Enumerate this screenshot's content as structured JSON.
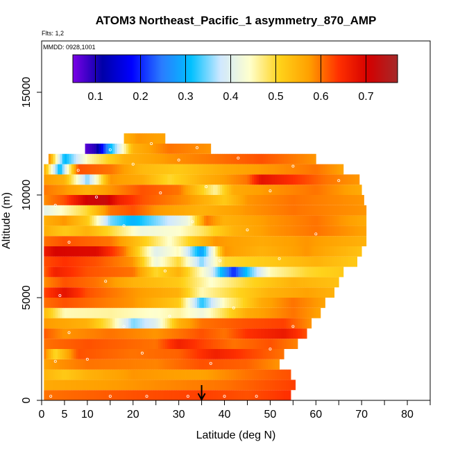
{
  "chart_data": {
    "type": "heatmap",
    "title": "ATOM3 Northeast_Pacific_1 asymmetry_870_AMP",
    "subtitle_flights": "Flts: 1,2",
    "subtitle_dates": "MMDD: 0928,1001",
    "xlabel": "Latitude (deg N)",
    "ylabel": "Altitude (m)",
    "xlim": [
      0,
      85
    ],
    "ylim": [
      0,
      17500
    ],
    "x_ticks": [
      0,
      5,
      10,
      20,
      30,
      40,
      50,
      60,
      70,
      80
    ],
    "x_minor_ticks": [
      15,
      25,
      35,
      45,
      55,
      65,
      75,
      85
    ],
    "y_ticks": [
      0,
      5000,
      10000,
      15000
    ],
    "colorbar": {
      "range": [
        0.05,
        0.77
      ],
      "ticks": [
        0.1,
        0.2,
        0.3,
        0.4,
        0.5,
        0.6,
        0.7
      ],
      "colors": [
        "#7a00e6",
        "#0000a8",
        "#0000ff",
        "#2a7bff",
        "#00c0ff",
        "#cfe8ff",
        "#ffffcc",
        "#ffd21a",
        "#ffa000",
        "#ff3000",
        "#d40000",
        "#a52a2a"
      ]
    },
    "marker_latitude": 35,
    "layers": [
      {
        "alt": 250,
        "x0": 0.5,
        "x1": 54.5,
        "anchors": [
          [
            0,
            0.6
          ],
          [
            20,
            0.62
          ],
          [
            35,
            0.63
          ],
          [
            45,
            0.62
          ],
          [
            54,
            0.64
          ]
        ]
      },
      {
        "alt": 750,
        "x0": 0.5,
        "x1": 55.5,
        "anchors": [
          [
            0,
            0.56
          ],
          [
            20,
            0.58
          ],
          [
            40,
            0.6
          ],
          [
            55,
            0.63
          ]
        ]
      },
      {
        "alt": 1250,
        "x0": 0.5,
        "x1": 54.5,
        "anchors": [
          [
            0,
            0.55
          ],
          [
            5,
            0.52
          ],
          [
            10,
            0.55
          ],
          [
            20,
            0.58
          ],
          [
            35,
            0.57
          ],
          [
            45,
            0.6
          ],
          [
            54,
            0.62
          ]
        ]
      },
      {
        "alt": 1750,
        "x0": 0.5,
        "x1": 52.0,
        "anchors": [
          [
            0,
            0.57
          ],
          [
            10,
            0.6
          ],
          [
            25,
            0.59
          ],
          [
            35,
            0.62
          ],
          [
            45,
            0.61
          ],
          [
            52,
            0.58
          ]
        ]
      },
      {
        "alt": 2250,
        "x0": 0.5,
        "x1": 53.0,
        "anchors": [
          [
            0,
            0.62
          ],
          [
            3,
            0.5
          ],
          [
            8,
            0.62
          ],
          [
            20,
            0.6
          ],
          [
            30,
            0.61
          ],
          [
            38,
            0.66
          ],
          [
            45,
            0.63
          ],
          [
            53,
            0.6
          ]
        ]
      },
      {
        "alt": 2750,
        "x0": 0.5,
        "x1": 56.0,
        "anchors": [
          [
            0,
            0.6
          ],
          [
            10,
            0.62
          ],
          [
            25,
            0.6
          ],
          [
            30,
            0.66
          ],
          [
            35,
            0.63
          ],
          [
            42,
            0.6
          ],
          [
            50,
            0.62
          ],
          [
            56,
            0.59
          ]
        ]
      },
      {
        "alt": 3250,
        "x0": 0.5,
        "x1": 58.0,
        "anchors": [
          [
            0,
            0.62
          ],
          [
            5,
            0.58
          ],
          [
            15,
            0.6
          ],
          [
            25,
            0.58
          ],
          [
            35,
            0.62
          ],
          [
            40,
            0.6
          ],
          [
            45,
            0.64
          ],
          [
            53,
            0.67
          ],
          [
            58,
            0.62
          ]
        ]
      },
      {
        "alt": 3750,
        "x0": 0.5,
        "x1": 59.0,
        "anchors": [
          [
            0,
            0.58
          ],
          [
            10,
            0.55
          ],
          [
            15,
            0.48
          ],
          [
            20,
            0.35
          ],
          [
            25,
            0.4
          ],
          [
            30,
            0.55
          ],
          [
            35,
            0.6
          ],
          [
            45,
            0.62
          ],
          [
            53,
            0.63
          ],
          [
            59,
            0.58
          ]
        ]
      },
      {
        "alt": 4250,
        "x0": 0.5,
        "x1": 61.0,
        "anchors": [
          [
            0,
            0.55
          ],
          [
            5,
            0.45
          ],
          [
            15,
            0.46
          ],
          [
            25,
            0.44
          ],
          [
            30,
            0.46
          ],
          [
            35,
            0.42
          ],
          [
            45,
            0.56
          ],
          [
            55,
            0.6
          ],
          [
            61,
            0.57
          ]
        ]
      },
      {
        "alt": 4750,
        "x0": 0.5,
        "x1": 62.0,
        "anchors": [
          [
            0,
            0.6
          ],
          [
            5,
            0.62
          ],
          [
            12,
            0.6
          ],
          [
            20,
            0.58
          ],
          [
            30,
            0.52
          ],
          [
            35,
            0.32
          ],
          [
            40,
            0.45
          ],
          [
            48,
            0.56
          ],
          [
            55,
            0.6
          ],
          [
            62,
            0.57
          ]
        ]
      },
      {
        "alt": 5250,
        "x0": 0.5,
        "x1": 64.0,
        "anchors": [
          [
            0,
            0.62
          ],
          [
            5,
            0.68
          ],
          [
            10,
            0.62
          ],
          [
            20,
            0.58
          ],
          [
            30,
            0.55
          ],
          [
            35,
            0.45
          ],
          [
            42,
            0.5
          ],
          [
            50,
            0.55
          ],
          [
            58,
            0.57
          ],
          [
            64,
            0.55
          ]
        ]
      },
      {
        "alt": 5750,
        "x0": 0.5,
        "x1": 65.0,
        "anchors": [
          [
            0,
            0.58
          ],
          [
            5,
            0.62
          ],
          [
            12,
            0.6
          ],
          [
            20,
            0.55
          ],
          [
            30,
            0.52
          ],
          [
            37,
            0.44
          ],
          [
            45,
            0.5
          ],
          [
            55,
            0.55
          ],
          [
            65,
            0.53
          ]
        ]
      },
      {
        "alt": 6250,
        "x0": 0.5,
        "x1": 66.0,
        "anchors": [
          [
            0,
            0.6
          ],
          [
            3,
            0.66
          ],
          [
            10,
            0.62
          ],
          [
            20,
            0.6
          ],
          [
            25,
            0.5
          ],
          [
            30,
            0.55
          ],
          [
            37,
            0.4
          ],
          [
            42,
            0.2
          ],
          [
            45,
            0.32
          ],
          [
            50,
            0.45
          ],
          [
            58,
            0.5
          ],
          [
            66,
            0.52
          ]
        ]
      },
      {
        "alt": 6750,
        "x0": 0.5,
        "x1": 69.0,
        "anchors": [
          [
            0,
            0.62
          ],
          [
            5,
            0.64
          ],
          [
            12,
            0.62
          ],
          [
            20,
            0.58
          ],
          [
            25,
            0.42
          ],
          [
            30,
            0.5
          ],
          [
            35,
            0.35
          ],
          [
            40,
            0.5
          ],
          [
            50,
            0.52
          ],
          [
            60,
            0.55
          ],
          [
            69,
            0.52
          ]
        ]
      },
      {
        "alt": 7250,
        "x0": 0.5,
        "x1": 70.0,
        "anchors": [
          [
            0,
            0.66
          ],
          [
            3,
            0.7
          ],
          [
            12,
            0.69
          ],
          [
            18,
            0.6
          ],
          [
            25,
            0.4
          ],
          [
            30,
            0.45
          ],
          [
            35,
            0.28
          ],
          [
            40,
            0.58
          ],
          [
            48,
            0.55
          ],
          [
            58,
            0.58
          ],
          [
            70,
            0.53
          ]
        ]
      },
      {
        "alt": 7750,
        "x0": 0.5,
        "x1": 71.0,
        "anchors": [
          [
            0,
            0.6
          ],
          [
            5,
            0.62
          ],
          [
            15,
            0.6
          ],
          [
            22,
            0.52
          ],
          [
            28,
            0.44
          ],
          [
            33,
            0.52
          ],
          [
            38,
            0.58
          ],
          [
            48,
            0.56
          ],
          [
            58,
            0.58
          ],
          [
            71,
            0.55
          ]
        ]
      },
      {
        "alt": 8250,
        "x0": 0.5,
        "x1": 71.0,
        "anchors": [
          [
            0,
            0.56
          ],
          [
            5,
            0.52
          ],
          [
            10,
            0.55
          ],
          [
            15,
            0.5
          ],
          [
            22,
            0.42
          ],
          [
            30,
            0.44
          ],
          [
            35,
            0.48
          ],
          [
            42,
            0.55
          ],
          [
            50,
            0.58
          ],
          [
            60,
            0.6
          ],
          [
            71,
            0.57
          ]
        ]
      },
      {
        "alt": 8750,
        "x0": 0.5,
        "x1": 71.0,
        "anchors": [
          [
            0,
            0.55
          ],
          [
            5,
            0.58
          ],
          [
            10,
            0.52
          ],
          [
            15,
            0.35
          ],
          [
            20,
            0.3
          ],
          [
            25,
            0.35
          ],
          [
            32,
            0.42
          ],
          [
            36,
            0.6
          ],
          [
            40,
            0.55
          ],
          [
            50,
            0.58
          ],
          [
            60,
            0.6
          ],
          [
            71,
            0.56
          ]
        ]
      },
      {
        "alt": 9250,
        "x0": 0.5,
        "x1": 71.0,
        "anchors": [
          [
            0,
            0.4
          ],
          [
            5,
            0.45
          ],
          [
            10,
            0.5
          ],
          [
            15,
            0.6
          ],
          [
            20,
            0.62
          ],
          [
            25,
            0.58
          ],
          [
            35,
            0.55
          ],
          [
            45,
            0.58
          ],
          [
            55,
            0.6
          ],
          [
            71,
            0.58
          ]
        ]
      },
      {
        "alt": 9750,
        "x0": 0.5,
        "x1": 70.5,
        "anchors": [
          [
            0,
            0.58
          ],
          [
            5,
            0.62
          ],
          [
            10,
            0.71
          ],
          [
            14,
            0.72
          ],
          [
            17,
            0.66
          ],
          [
            22,
            0.62
          ],
          [
            32,
            0.58
          ],
          [
            40,
            0.52
          ],
          [
            45,
            0.58
          ],
          [
            55,
            0.6
          ],
          [
            70,
            0.58
          ]
        ]
      },
      {
        "alt": 10250,
        "x0": 0.5,
        "x1": 70.0,
        "anchors": [
          [
            0,
            0.6
          ],
          [
            5,
            0.58
          ],
          [
            10,
            0.55
          ],
          [
            15,
            0.58
          ],
          [
            22,
            0.62
          ],
          [
            30,
            0.6
          ],
          [
            38,
            0.46
          ],
          [
            42,
            0.56
          ],
          [
            50,
            0.58
          ],
          [
            60,
            0.6
          ],
          [
            70,
            0.56
          ]
        ]
      },
      {
        "alt": 10750,
        "x0": 0.5,
        "x1": 69.5,
        "anchors": [
          [
            0,
            0.58
          ],
          [
            5,
            0.55
          ],
          [
            10,
            0.35
          ],
          [
            15,
            0.58
          ],
          [
            22,
            0.56
          ],
          [
            28,
            0.5
          ],
          [
            35,
            0.55
          ],
          [
            45,
            0.6
          ],
          [
            48,
            0.68
          ],
          [
            55,
            0.64
          ],
          [
            62,
            0.6
          ],
          [
            69,
            0.58
          ]
        ]
      },
      {
        "alt": 11250,
        "x0": 0.5,
        "x1": 66.0,
        "anchors": [
          [
            0,
            0.6
          ],
          [
            4,
            0.3
          ],
          [
            8,
            0.62
          ],
          [
            15,
            0.6
          ],
          [
            22,
            0.54
          ],
          [
            30,
            0.52
          ],
          [
            40,
            0.56
          ],
          [
            50,
            0.58
          ],
          [
            60,
            0.6
          ],
          [
            66,
            0.57
          ]
        ]
      },
      {
        "alt": 11750,
        "x0": 1.5,
        "x1": 60.0,
        "anchors": [
          [
            1,
            0.64
          ],
          [
            5,
            0.3
          ],
          [
            10,
            0.45
          ],
          [
            18,
            0.55
          ],
          [
            28,
            0.58
          ],
          [
            38,
            0.6
          ],
          [
            48,
            0.62
          ],
          [
            60,
            0.58
          ]
        ]
      },
      {
        "alt": 12250,
        "x0": 9.5,
        "x1": 37.0,
        "anchors": [
          [
            9,
            0.06
          ],
          [
            12,
            0.1
          ],
          [
            15,
            0.3
          ],
          [
            20,
            0.55
          ],
          [
            28,
            0.6
          ],
          [
            37,
            0.58
          ]
        ]
      },
      {
        "alt": 12750,
        "x0": 18.0,
        "x1": 27.0,
        "anchors": [
          [
            18,
            0.55
          ],
          [
            21,
            0.58
          ],
          [
            27,
            0.57
          ]
        ]
      }
    ],
    "points": [
      [
        2,
        200
      ],
      [
        15,
        200
      ],
      [
        23,
        200
      ],
      [
        32,
        200
      ],
      [
        40,
        200
      ],
      [
        47,
        200
      ],
      [
        3,
        1900
      ],
      [
        10,
        2000
      ],
      [
        22,
        2300
      ],
      [
        37,
        1800
      ],
      [
        50,
        2500
      ],
      [
        60,
        2400
      ],
      [
        6,
        3300
      ],
      [
        18,
        3600
      ],
      [
        28,
        4100
      ],
      [
        42,
        4500
      ],
      [
        55,
        3600
      ],
      [
        4,
        5100
      ],
      [
        14,
        5800
      ],
      [
        27,
        6300
      ],
      [
        39,
        6800
      ],
      [
        52,
        6900
      ],
      [
        6,
        7700
      ],
      [
        18,
        8500
      ],
      [
        33,
        8700
      ],
      [
        45,
        8300
      ],
      [
        60,
        8100
      ],
      [
        3,
        9500
      ],
      [
        12,
        9900
      ],
      [
        26,
        10100
      ],
      [
        36,
        10400
      ],
      [
        50,
        10200
      ],
      [
        65,
        10700
      ],
      [
        8,
        11200
      ],
      [
        20,
        11500
      ],
      [
        30,
        11700
      ],
      [
        43,
        11800
      ],
      [
        55,
        11400
      ],
      [
        15,
        12200
      ],
      [
        24,
        12500
      ],
      [
        34,
        12300
      ]
    ]
  }
}
